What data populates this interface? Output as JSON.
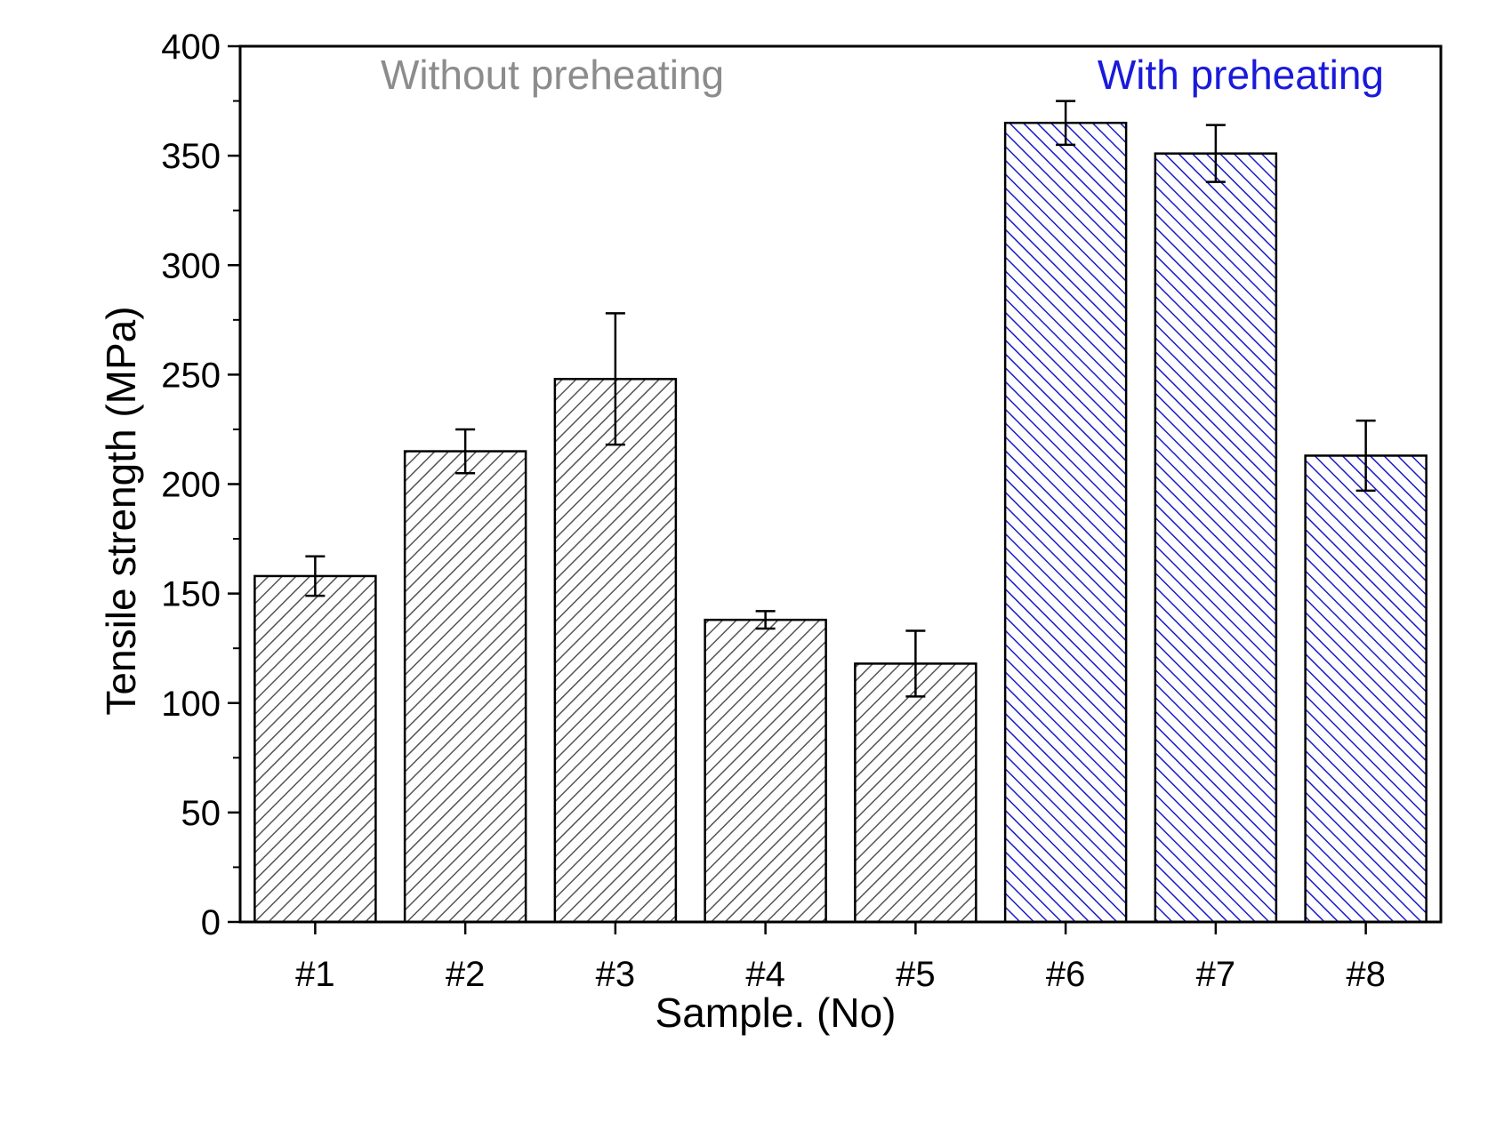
{
  "chart_data": {
    "type": "bar",
    "title": "",
    "xlabel": "Sample. (No)",
    "ylabel": "Tensile strength (MPa)",
    "ylim": [
      0,
      400
    ],
    "yticks": [
      0,
      50,
      100,
      150,
      200,
      250,
      300,
      350,
      400
    ],
    "categories": [
      "#1",
      "#2",
      "#3",
      "#4",
      "#5",
      "#6",
      "#7",
      "#8"
    ],
    "values": [
      158,
      215,
      248,
      138,
      118,
      365,
      351,
      213
    ],
    "errors": [
      9,
      10,
      30,
      4,
      15,
      10,
      13,
      16
    ],
    "groups": [
      "without",
      "without",
      "without",
      "without",
      "without",
      "with",
      "with",
      "with"
    ],
    "group_labels": {
      "without": "Without preheating",
      "with": "With preheating"
    },
    "colors": {
      "without": "#555555",
      "with": "#1a1acc",
      "without_label": "#8c8c8c",
      "with_label": "#1a1adb",
      "axis": "#000000"
    },
    "grid": false
  }
}
